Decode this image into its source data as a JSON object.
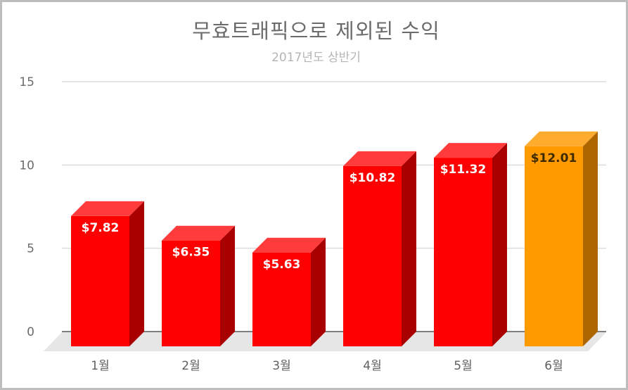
{
  "chart_data": {
    "type": "bar",
    "title": "무효트래픽으로 제외된 수익",
    "subtitle": "2017년도 상반기",
    "categories": [
      "1월",
      "2월",
      "3월",
      "4월",
      "5월",
      "6월"
    ],
    "series": [
      {
        "values": [
          7.82,
          6.35,
          5.63,
          10.82,
          11.32,
          12.01
        ]
      }
    ],
    "data_labels": [
      "$7.82",
      "$6.35",
      "$5.63",
      "$10.82",
      "$11.32",
      "$12.01"
    ],
    "ylim": [
      0,
      15
    ],
    "yticks": [
      0,
      5,
      10,
      15
    ],
    "grid": true,
    "legend": "none",
    "style": "3d-column",
    "colors": {
      "bar": "#ff0000",
      "bar_top": "#ff3b3b",
      "bar_side": "#a80000",
      "highlight": "#ff9b00",
      "highlight_top": "#ffac2e",
      "highlight_side": "#ad6500",
      "highlight_label": "#3d2a00",
      "label": "#ffffff",
      "grid": "#dcdcdc",
      "floor": "#e6e6e6"
    },
    "highlight_category": "6월"
  }
}
